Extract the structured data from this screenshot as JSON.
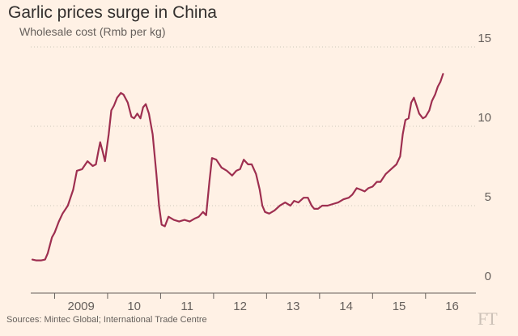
{
  "chart_data": {
    "type": "line",
    "title": "Garlic prices surge in China",
    "subtitle": "Wholesale cost (Rmb per kg)",
    "xlabel": "",
    "ylabel": "",
    "ylim": [
      0,
      15
    ],
    "yticks": [
      0,
      5,
      10,
      15
    ],
    "xtick_labels": [
      "2009",
      "10",
      "11",
      "12",
      "13",
      "14",
      "15",
      "16"
    ],
    "x_range": [
      2008.55,
      2016.95
    ],
    "grid": "horizontal dotted",
    "source": "Sources: Mintec Global; International Trade Centre",
    "colors": {
      "line": "#9e2f50",
      "background": "#fff1e5",
      "grid": "#cec6b9",
      "axis": "#66605c"
    },
    "series": [
      {
        "values": [
          [
            2008.58,
            1.6
          ],
          [
            2008.65,
            1.55
          ],
          [
            2008.75,
            1.55
          ],
          [
            2008.82,
            1.6
          ],
          [
            2008.87,
            2.0
          ],
          [
            2008.95,
            3.0
          ],
          [
            2009.0,
            3.3
          ],
          [
            2009.08,
            4.0
          ],
          [
            2009.15,
            4.5
          ],
          [
            2009.25,
            5.0
          ],
          [
            2009.35,
            6.0
          ],
          [
            2009.42,
            7.2
          ],
          [
            2009.52,
            7.3
          ],
          [
            2009.62,
            7.8
          ],
          [
            2009.72,
            7.5
          ],
          [
            2009.78,
            7.6
          ],
          [
            2009.83,
            8.5
          ],
          [
            2009.86,
            9.0
          ],
          [
            2009.9,
            8.5
          ],
          [
            2009.95,
            7.8
          ],
          [
            2010.02,
            9.5
          ],
          [
            2010.07,
            11.0
          ],
          [
            2010.12,
            11.3
          ],
          [
            2010.18,
            11.8
          ],
          [
            2010.25,
            12.1
          ],
          [
            2010.3,
            12.0
          ],
          [
            2010.38,
            11.5
          ],
          [
            2010.45,
            10.6
          ],
          [
            2010.5,
            10.5
          ],
          [
            2010.56,
            10.8
          ],
          [
            2010.62,
            10.5
          ],
          [
            2010.67,
            11.2
          ],
          [
            2010.72,
            11.4
          ],
          [
            2010.78,
            10.8
          ],
          [
            2010.85,
            9.5
          ],
          [
            2010.92,
            7.0
          ],
          [
            2010.97,
            5.0
          ],
          [
            2011.02,
            3.8
          ],
          [
            2011.08,
            3.7
          ],
          [
            2011.15,
            4.3
          ],
          [
            2011.25,
            4.1
          ],
          [
            2011.35,
            4.0
          ],
          [
            2011.45,
            4.1
          ],
          [
            2011.55,
            4.0
          ],
          [
            2011.65,
            4.2
          ],
          [
            2011.72,
            4.3
          ],
          [
            2011.8,
            4.6
          ],
          [
            2011.86,
            4.4
          ],
          [
            2011.92,
            6.5
          ],
          [
            2011.97,
            8.0
          ],
          [
            2012.05,
            7.9
          ],
          [
            2012.15,
            7.4
          ],
          [
            2012.25,
            7.2
          ],
          [
            2012.35,
            6.9
          ],
          [
            2012.43,
            7.2
          ],
          [
            2012.5,
            7.3
          ],
          [
            2012.57,
            7.9
          ],
          [
            2012.65,
            7.6
          ],
          [
            2012.72,
            7.6
          ],
          [
            2012.8,
            7.0
          ],
          [
            2012.87,
            6.0
          ],
          [
            2012.92,
            5.0
          ],
          [
            2012.97,
            4.6
          ],
          [
            2013.05,
            4.5
          ],
          [
            2013.15,
            4.7
          ],
          [
            2013.25,
            5.0
          ],
          [
            2013.35,
            5.2
          ],
          [
            2013.45,
            5.0
          ],
          [
            2013.52,
            5.3
          ],
          [
            2013.6,
            5.2
          ],
          [
            2013.7,
            5.5
          ],
          [
            2013.78,
            5.5
          ],
          [
            2013.85,
            5.0
          ],
          [
            2013.9,
            4.8
          ],
          [
            2013.97,
            4.8
          ],
          [
            2014.05,
            5.0
          ],
          [
            2014.15,
            5.0
          ],
          [
            2014.25,
            5.1
          ],
          [
            2014.35,
            5.2
          ],
          [
            2014.45,
            5.4
          ],
          [
            2014.55,
            5.5
          ],
          [
            2014.62,
            5.7
          ],
          [
            2014.7,
            6.1
          ],
          [
            2014.78,
            6.0
          ],
          [
            2014.85,
            5.9
          ],
          [
            2014.92,
            6.1
          ],
          [
            2015.0,
            6.2
          ],
          [
            2015.08,
            6.5
          ],
          [
            2015.15,
            6.5
          ],
          [
            2015.25,
            7.0
          ],
          [
            2015.35,
            7.3
          ],
          [
            2015.45,
            7.6
          ],
          [
            2015.52,
            8.1
          ],
          [
            2015.57,
            9.5
          ],
          [
            2015.62,
            10.4
          ],
          [
            2015.68,
            10.5
          ],
          [
            2015.73,
            11.5
          ],
          [
            2015.78,
            11.8
          ],
          [
            2015.83,
            11.3
          ],
          [
            2015.88,
            10.8
          ],
          [
            2015.95,
            10.5
          ],
          [
            2016.0,
            10.6
          ],
          [
            2016.07,
            11.0
          ],
          [
            2016.12,
            11.6
          ],
          [
            2016.18,
            12.0
          ],
          [
            2016.23,
            12.5
          ],
          [
            2016.28,
            12.8
          ],
          [
            2016.33,
            13.3
          ]
        ]
      }
    ]
  }
}
